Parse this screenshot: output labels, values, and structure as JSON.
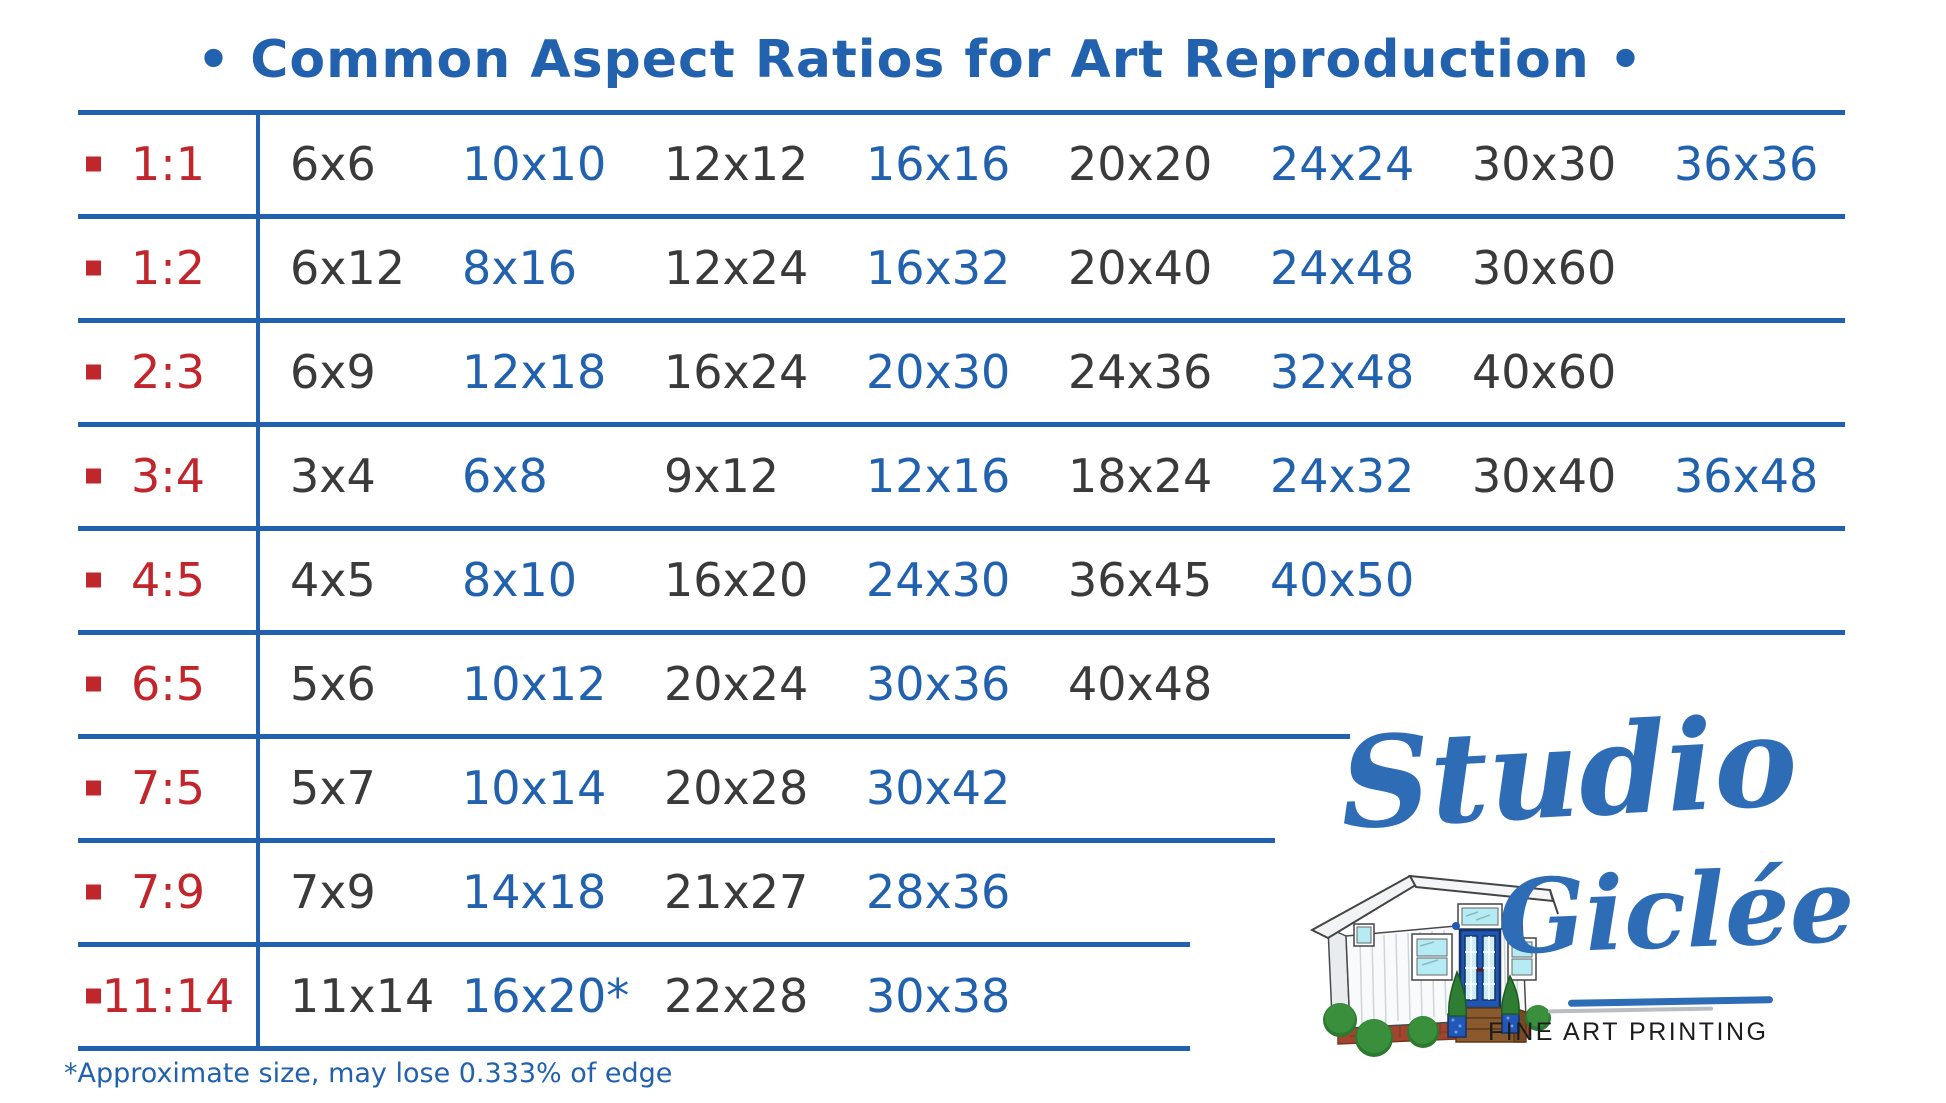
{
  "title": "• Common Aspect Ratios for Art Reproduction •",
  "colors": {
    "blue": "#2261ad",
    "red": "#c0262c",
    "dark": "#3a3a3a",
    "logo_blue": "#2e6cb5"
  },
  "table": {
    "rows": [
      {
        "ratio": "1:1",
        "sizes": [
          "6x6",
          "10x10",
          "12x12",
          "16x16",
          "20x20",
          "24x24",
          "30x30",
          "36x36"
        ]
      },
      {
        "ratio": "1:2",
        "sizes": [
          "6x12",
          "8x16",
          "12x24",
          "16x32",
          "20x40",
          "24x48",
          "30x60"
        ]
      },
      {
        "ratio": "2:3",
        "sizes": [
          "6x9",
          "12x18",
          "16x24",
          "20x30",
          "24x36",
          "32x48",
          "40x60"
        ]
      },
      {
        "ratio": "3:4",
        "sizes": [
          "3x4",
          "6x8",
          "9x12",
          "12x16",
          "18x24",
          "24x32",
          "30x40",
          "36x48"
        ]
      },
      {
        "ratio": "4:5",
        "sizes": [
          "4x5",
          "8x10",
          "16x20",
          "24x30",
          "36x45",
          "40x50"
        ]
      },
      {
        "ratio": "6:5",
        "sizes": [
          "5x6",
          "10x12",
          "20x24",
          "30x36",
          "40x48"
        ]
      },
      {
        "ratio": "7:5",
        "sizes": [
          "5x7",
          "10x14",
          "20x28",
          "30x42"
        ]
      },
      {
        "ratio": "7:9",
        "sizes": [
          "7x9",
          "14x18",
          "21x27",
          "28x36"
        ]
      },
      {
        "ratio": "11:14",
        "sizes": [
          "11x14",
          "16x20*",
          "22x28",
          "30x38"
        ]
      }
    ]
  },
  "footnote": "*Approximate size, may lose 0.333% of edge",
  "logo": {
    "script_line1": "Studio",
    "script_line2": "Giclée",
    "tagline": "FINE ART PRINTING"
  }
}
